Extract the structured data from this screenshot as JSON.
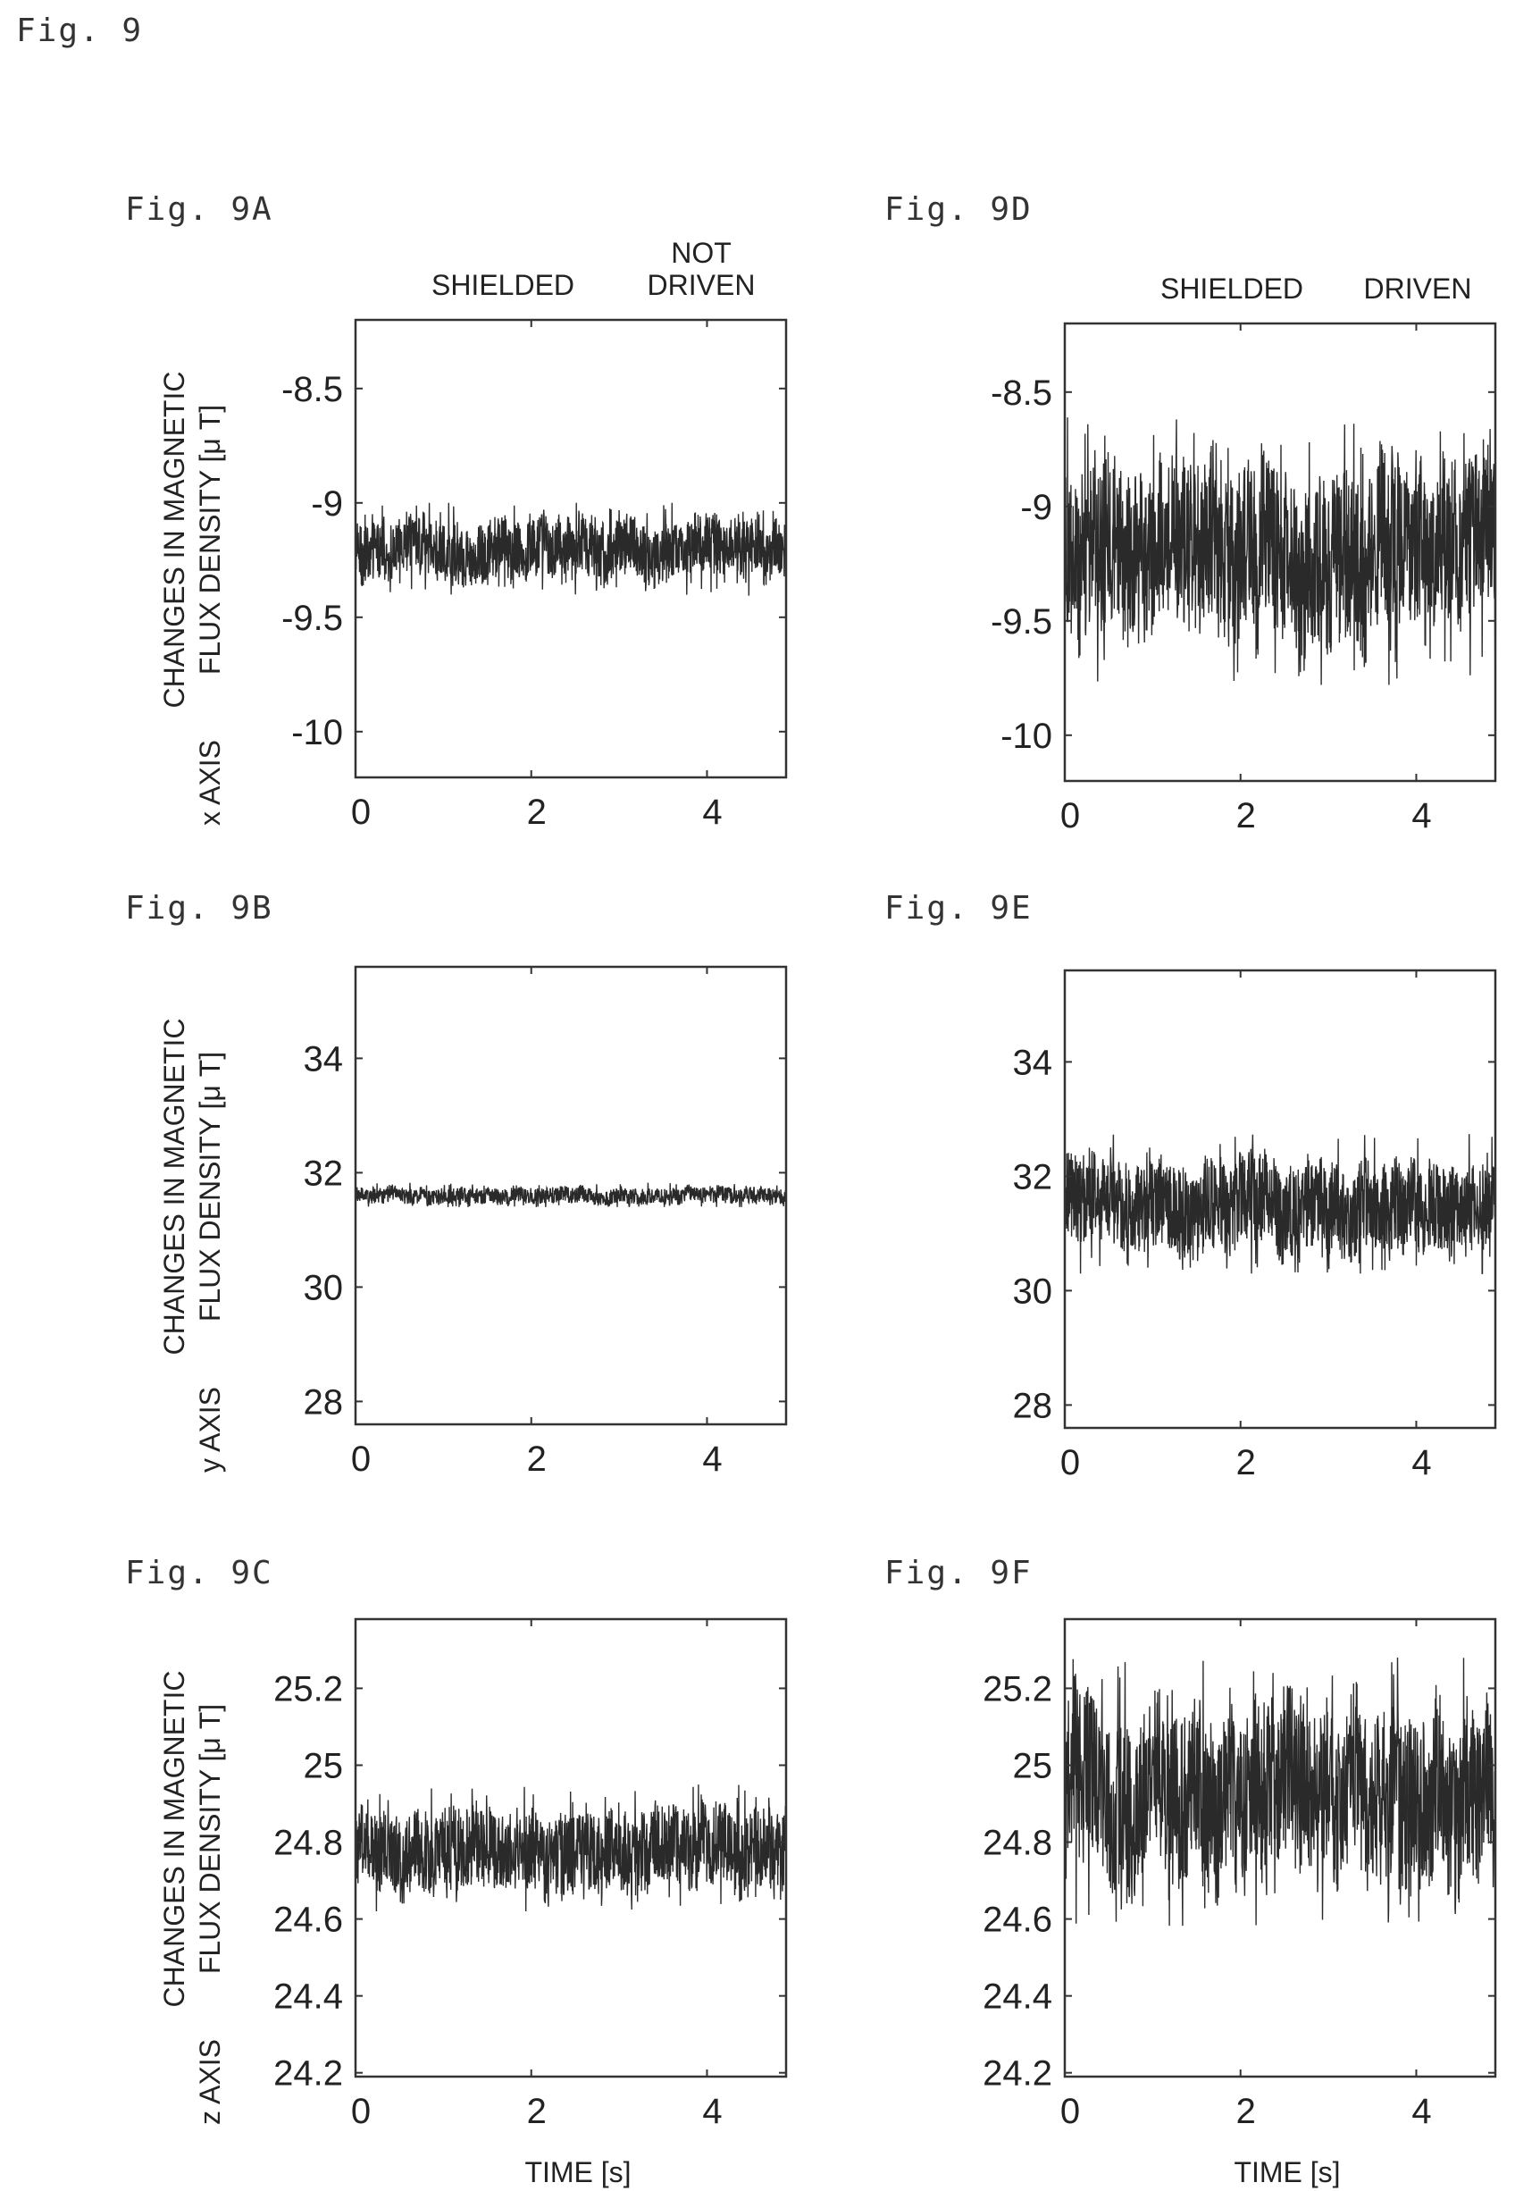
{
  "figure_title": "Fig. 9",
  "time_label": "TIME [s]",
  "y_label_line1": "CHANGES IN MAGNETIC",
  "y_label_line2": "FLUX DENSITY [μ T]",
  "colors": {
    "trace": "#2a2a2a",
    "frame": "#333333",
    "background": "#ffffff"
  },
  "chart_data": [
    {
      "id": "9A",
      "label": "Fig. 9A",
      "type": "line",
      "axis_name": "x AXIS",
      "condition_left": "SHIELDED",
      "condition_right_lines": [
        "NOT",
        "DRIVEN"
      ],
      "xlim": [
        0,
        4.9
      ],
      "ylim": [
        -10.2,
        -8.2
      ],
      "xticks": [
        0,
        2,
        4
      ],
      "yticks": [
        -8.5,
        -9,
        -9.5,
        -10
      ],
      "ytick_labels": [
        "-8.5",
        "-9",
        "-9.5",
        "-10"
      ],
      "series": [
        {
          "mean": -9.2,
          "min": -9.42,
          "max": -9.0
        }
      ]
    },
    {
      "id": "9D",
      "label": "Fig. 9D",
      "type": "line",
      "axis_name": "",
      "condition_left": "SHIELDED",
      "condition_right_lines": [
        "DRIVEN"
      ],
      "xlim": [
        0,
        4.9
      ],
      "ylim": [
        -10.2,
        -8.2
      ],
      "xticks": [
        0,
        2,
        4
      ],
      "yticks": [
        -8.5,
        -9,
        -9.5,
        -10
      ],
      "ytick_labels": [
        "-8.5",
        "-9",
        "-9.5",
        "-10"
      ],
      "series": [
        {
          "mean": -9.2,
          "min": -9.78,
          "max": -8.6
        }
      ]
    },
    {
      "id": "9B",
      "label": "Fig. 9B",
      "type": "line",
      "axis_name": "y AXIS",
      "condition_left": "",
      "condition_right_lines": [],
      "xlim": [
        0,
        4.9
      ],
      "ylim": [
        27.6,
        35.6
      ],
      "xticks": [
        0,
        2,
        4
      ],
      "yticks": [
        34,
        32,
        30,
        28
      ],
      "ytick_labels": [
        "34",
        "32",
        "30",
        "28"
      ],
      "series": [
        {
          "mean": 31.6,
          "min": 31.4,
          "max": 31.85
        }
      ]
    },
    {
      "id": "9E",
      "label": "Fig. 9E",
      "type": "line",
      "axis_name": "",
      "condition_left": "",
      "condition_right_lines": [],
      "xlim": [
        0,
        4.9
      ],
      "ylim": [
        27.6,
        35.6
      ],
      "xticks": [
        0,
        2,
        4
      ],
      "yticks": [
        34,
        32,
        30,
        28
      ],
      "ytick_labels": [
        "34",
        "32",
        "30",
        "28"
      ],
      "series": [
        {
          "mean": 31.5,
          "min": 30.3,
          "max": 32.8
        }
      ]
    },
    {
      "id": "9C",
      "label": "Fig. 9C",
      "type": "line",
      "axis_name": "z AXIS",
      "condition_left": "",
      "condition_right_lines": [],
      "xlim": [
        0,
        4.9
      ],
      "ylim": [
        24.19,
        25.38
      ],
      "xticks": [
        0,
        2,
        4
      ],
      "yticks": [
        25.2,
        25,
        24.8,
        24.6,
        24.4,
        24.2
      ],
      "ytick_labels": [
        "25.2",
        "25",
        "24.8",
        "24.6",
        "24.4",
        "24.2"
      ],
      "series": [
        {
          "mean": 24.78,
          "min": 24.62,
          "max": 24.96
        }
      ]
    },
    {
      "id": "9F",
      "label": "Fig. 9F",
      "type": "line",
      "axis_name": "",
      "condition_left": "",
      "condition_right_lines": [],
      "xlim": [
        0,
        4.9
      ],
      "ylim": [
        24.19,
        25.38
      ],
      "xticks": [
        0,
        2,
        4
      ],
      "yticks": [
        25.2,
        25,
        24.8,
        24.6,
        24.4,
        24.2
      ],
      "ytick_labels": [
        "25.2",
        "25",
        "24.8",
        "24.6",
        "24.4",
        "24.2"
      ],
      "series": [
        {
          "mean": 24.93,
          "min": 24.57,
          "max": 25.28
        }
      ]
    }
  ]
}
